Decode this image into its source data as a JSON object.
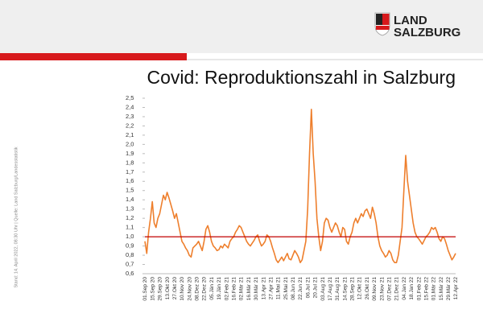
{
  "logo": {
    "line1": "LAND",
    "line2": "SALZBURG"
  },
  "source": "Stand: 14. April 2022, 08:30 Uhr | Quelle: Land Salzburg/Landesstatistik",
  "chart_data": {
    "type": "line",
    "title": "Covid: Reproduktionszahl in Salzburg",
    "color": "#ee7f2d",
    "reference_line": 1.0,
    "reference_color": "#c00000",
    "ylim": [
      0.6,
      2.5
    ],
    "yticks": [
      {
        "value": 0.6,
        "label": "0,6"
      },
      {
        "value": 0.7,
        "label": "0,7"
      },
      {
        "value": 0.8,
        "label": "0,8"
      },
      {
        "value": 0.9,
        "label": "0,9"
      },
      {
        "value": 1.0,
        "label": "1,0"
      },
      {
        "value": 1.1,
        "label": "1,1"
      },
      {
        "value": 1.2,
        "label": "1,2"
      },
      {
        "value": 1.3,
        "label": "1,3"
      },
      {
        "value": 1.4,
        "label": "1,4"
      },
      {
        "value": 1.5,
        "label": "1,5"
      },
      {
        "value": 1.6,
        "label": "1,6"
      },
      {
        "value": 1.7,
        "label": "1,7"
      },
      {
        "value": 1.8,
        "label": "1,8"
      },
      {
        "value": 1.9,
        "label": "1,9"
      },
      {
        "value": 2.0,
        "label": "2,0"
      },
      {
        "value": 2.1,
        "label": "2,1"
      },
      {
        "value": 2.2,
        "label": "2,2"
      },
      {
        "value": 2.3,
        "label": "2,3"
      },
      {
        "value": 2.4,
        "label": "2,4"
      },
      {
        "value": 2.5,
        "label": "2,5"
      }
    ],
    "categories": [
      "01.Sep 20",
      null,
      null,
      null,
      "15.Sep 20",
      null,
      null,
      null,
      "29.Sep 20",
      null,
      null,
      null,
      "13.Okt 20",
      null,
      null,
      null,
      "27.Okt 20",
      null,
      null,
      null,
      "10.Nov 20",
      null,
      null,
      null,
      "24.Nov 20",
      null,
      null,
      null,
      "08.Dez 20",
      null,
      null,
      null,
      "22.Dez 20",
      null,
      null,
      null,
      "05.Jän 21",
      null,
      null,
      null,
      "19.Jän 21",
      null,
      null,
      null,
      "02.Feb 21",
      null,
      null,
      null,
      "16.Feb 21",
      null,
      null,
      null,
      "02.Mär 21",
      null,
      null,
      null,
      "16.Mär 21",
      null,
      null,
      null,
      "30.Mär 21",
      null,
      null,
      null,
      "13.Apr 21",
      null,
      null,
      null,
      "27.Apr 21",
      null,
      null,
      null,
      "11.Mai 21",
      null,
      null,
      null,
      "25.Mai 21",
      null,
      null,
      null,
      "08.Jun 21",
      null,
      null,
      null,
      "22.Jun 21",
      null,
      null,
      null,
      "06.Jul 21",
      null,
      null,
      null,
      "20.Jul 21",
      null,
      null,
      null,
      "03.Aug 21",
      null,
      null,
      null,
      "17.Aug 21",
      null,
      null,
      null,
      "31.Aug 21",
      null,
      null,
      null,
      "14.Sep 21",
      null,
      null,
      null,
      "28.Sep 21",
      null,
      null,
      null,
      "12.Okt 21",
      null,
      null,
      null,
      "26.Okt 21",
      null,
      null,
      null,
      "09.Nov 21",
      null,
      null,
      null,
      "23.Nov 21",
      null,
      null,
      null,
      "07.Dez 21",
      null,
      null,
      null,
      "21.Dez 21",
      null,
      null,
      null,
      "04.Jan 22",
      null,
      null,
      null,
      "18.Jan 22",
      null,
      null,
      null,
      "01.Feb 22",
      null,
      null,
      null,
      "15.Feb 22",
      null,
      null,
      null,
      "01.Mär 22",
      null,
      null,
      null,
      "15.Mär 22",
      null,
      null,
      null,
      "29.Mär 22",
      null,
      null,
      null,
      "12.Apr 22"
    ],
    "values": [
      0.95,
      0.82,
      1.05,
      1.2,
      1.38,
      1.15,
      1.1,
      1.2,
      1.25,
      1.35,
      1.45,
      1.4,
      1.48,
      1.42,
      1.35,
      1.28,
      1.2,
      1.25,
      1.15,
      1.05,
      0.95,
      0.92,
      0.88,
      0.85,
      0.8,
      0.78,
      0.88,
      0.9,
      0.92,
      0.95,
      0.9,
      0.85,
      0.95,
      1.08,
      1.12,
      1.05,
      0.95,
      0.9,
      0.88,
      0.85,
      0.86,
      0.9,
      0.88,
      0.92,
      0.9,
      0.88,
      0.95,
      0.98,
      1.0,
      1.05,
      1.08,
      1.12,
      1.1,
      1.05,
      1.0,
      0.95,
      0.92,
      0.9,
      0.93,
      0.96,
      1.0,
      1.02,
      0.95,
      0.9,
      0.92,
      0.95,
      1.02,
      1.0,
      0.95,
      0.88,
      0.82,
      0.75,
      0.72,
      0.75,
      0.78,
      0.74,
      0.78,
      0.82,
      0.76,
      0.75,
      0.8,
      0.85,
      0.82,
      0.78,
      0.72,
      0.75,
      0.85,
      0.95,
      1.3,
      1.9,
      2.38,
      1.9,
      1.6,
      1.2,
      1.0,
      0.85,
      0.95,
      1.15,
      1.2,
      1.18,
      1.1,
      1.05,
      1.1,
      1.15,
      1.12,
      1.05,
      1.0,
      1.1,
      1.08,
      0.95,
      0.92,
      1.0,
      1.05,
      1.15,
      1.2,
      1.15,
      1.2,
      1.25,
      1.22,
      1.28,
      1.3,
      1.25,
      1.2,
      1.32,
      1.25,
      1.15,
      1.0,
      0.9,
      0.85,
      0.82,
      0.78,
      0.8,
      0.85,
      0.82,
      0.75,
      0.72,
      0.72,
      0.8,
      0.95,
      1.1,
      1.5,
      1.88,
      1.6,
      1.45,
      1.3,
      1.15,
      1.05,
      1.0,
      0.98,
      0.95,
      0.92,
      0.96,
      1.0,
      1.02,
      1.05,
      1.1,
      1.08,
      1.1,
      1.05,
      0.98,
      0.95,
      1.0,
      0.98,
      0.92,
      0.85,
      0.8,
      0.75,
      0.78,
      0.82
    ]
  }
}
